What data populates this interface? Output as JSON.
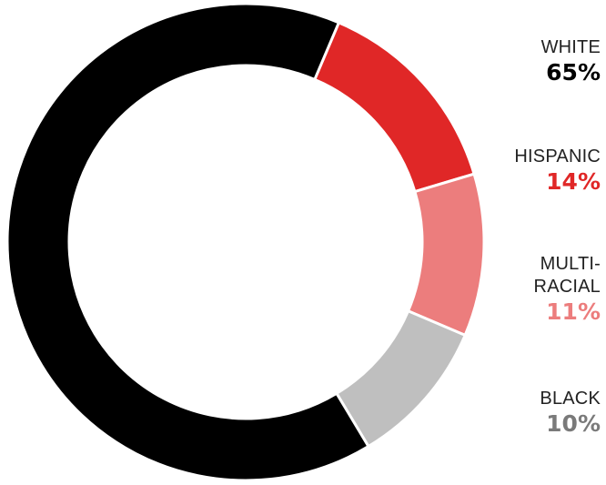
{
  "chart_data": {
    "type": "pie",
    "donut": true,
    "categories": [
      "WHITE",
      "HISPANIC",
      "MULTI-RACIAL",
      "BLACK"
    ],
    "values": [
      65,
      14,
      11,
      10
    ],
    "value_labels": [
      "65%",
      "14%",
      "11%",
      "10%"
    ],
    "label_lines": [
      [
        "WHITE"
      ],
      [
        "HISPANIC"
      ],
      [
        "MULTI-",
        "RACIAL"
      ],
      [
        "BLACK"
      ]
    ],
    "colors": [
      "#000000",
      "#e02727",
      "#ec7d7d",
      "#bfbfbf"
    ],
    "value_colors": [
      "#000000",
      "#e02727",
      "#ec7d7d",
      "#7a7a7a"
    ],
    "legend": "right"
  }
}
